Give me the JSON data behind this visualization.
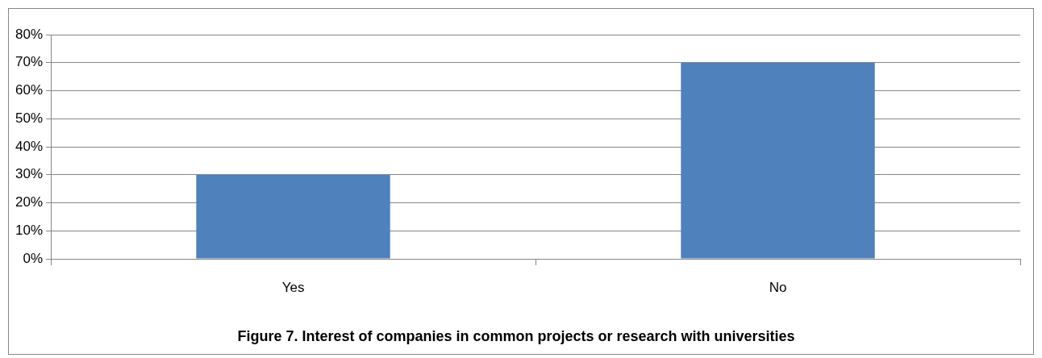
{
  "chart_data": {
    "type": "bar",
    "title": "Figure 7. Interest of companies in common projects or research with universities",
    "categories": [
      "Yes",
      "No"
    ],
    "values": [
      30,
      70
    ],
    "color": "#4f81bd",
    "ylim": [
      0,
      80
    ],
    "yticks": [
      {
        "value": 0,
        "label": "0%"
      },
      {
        "value": 10,
        "label": "10%"
      },
      {
        "value": 20,
        "label": "20%"
      },
      {
        "value": 30,
        "label": "30%"
      },
      {
        "value": 40,
        "label": "40%"
      },
      {
        "value": 50,
        "label": "50%"
      },
      {
        "value": 60,
        "label": "60%"
      },
      {
        "value": 70,
        "label": "70%"
      },
      {
        "value": 80,
        "label": "80%"
      }
    ],
    "grid": "y",
    "legend": false
  }
}
